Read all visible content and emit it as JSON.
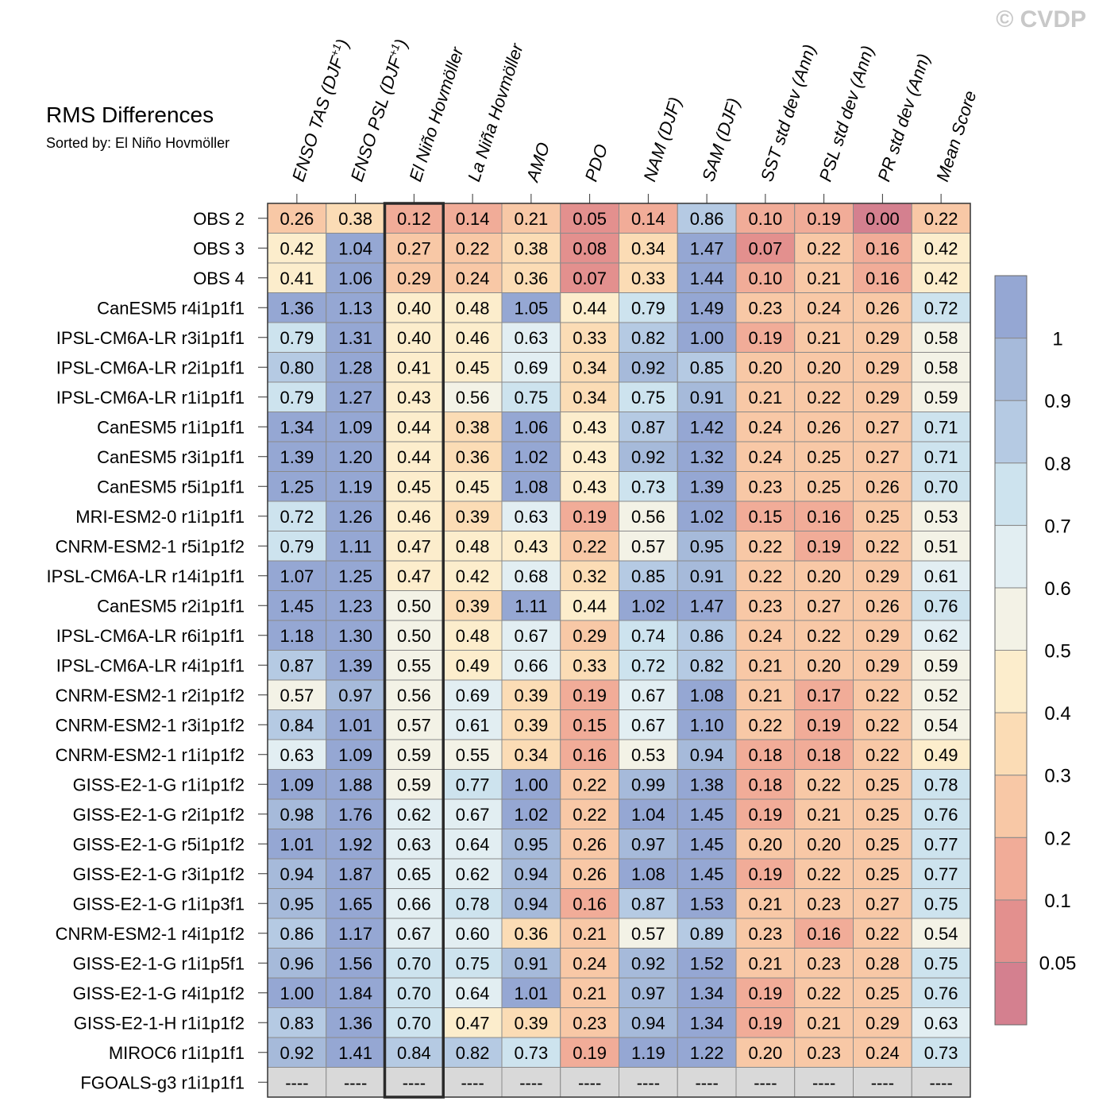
{
  "watermark": "© CVDP",
  "chart_data": {
    "type": "heatmap",
    "title": "RMS Differences",
    "subtitle": "Sorted by: El Niño Hovmöller",
    "highlight_column": "El Niño Hovmöller",
    "missing_label": "----",
    "columns": [
      "ENSO TAS (DJF+1)",
      "ENSO PSL (DJF+1)",
      "El Niño Hovmöller",
      "La Niña Hovmöller",
      "AMO",
      "PDO",
      "NAM (DJF)",
      "SAM (DJF)",
      "SST std dev (Ann)",
      "PSL std dev (Ann)",
      "PR std dev (Ann)",
      "Mean Score"
    ],
    "rows": [
      {
        "name": "OBS 2",
        "values": [
          0.26,
          0.38,
          0.12,
          0.14,
          0.21,
          0.05,
          0.14,
          0.86,
          0.1,
          0.19,
          0.0,
          0.22
        ]
      },
      {
        "name": "OBS 3",
        "values": [
          0.42,
          1.04,
          0.27,
          0.22,
          0.38,
          0.08,
          0.34,
          1.47,
          0.07,
          0.22,
          0.16,
          0.42
        ]
      },
      {
        "name": "OBS 4",
        "values": [
          0.41,
          1.06,
          0.29,
          0.24,
          0.36,
          0.07,
          0.33,
          1.44,
          0.1,
          0.21,
          0.16,
          0.42
        ]
      },
      {
        "name": "CanESM5 r4i1p1f1",
        "values": [
          1.36,
          1.13,
          0.4,
          0.48,
          1.05,
          0.44,
          0.79,
          1.49,
          0.23,
          0.24,
          0.26,
          0.72
        ]
      },
      {
        "name": "IPSL-CM6A-LR r3i1p1f1",
        "values": [
          0.79,
          1.31,
          0.4,
          0.46,
          0.63,
          0.33,
          0.82,
          1.0,
          0.19,
          0.21,
          0.29,
          0.58
        ]
      },
      {
        "name": "IPSL-CM6A-LR r2i1p1f1",
        "values": [
          0.8,
          1.28,
          0.41,
          0.45,
          0.69,
          0.34,
          0.92,
          0.85,
          0.2,
          0.2,
          0.29,
          0.58
        ]
      },
      {
        "name": "IPSL-CM6A-LR r1i1p1f1",
        "values": [
          0.79,
          1.27,
          0.43,
          0.56,
          0.75,
          0.34,
          0.75,
          0.91,
          0.21,
          0.22,
          0.29,
          0.59
        ]
      },
      {
        "name": "CanESM5 r1i1p1f1",
        "values": [
          1.34,
          1.09,
          0.44,
          0.38,
          1.06,
          0.43,
          0.87,
          1.42,
          0.24,
          0.26,
          0.27,
          0.71
        ]
      },
      {
        "name": "CanESM5 r3i1p1f1",
        "values": [
          1.39,
          1.2,
          0.44,
          0.36,
          1.02,
          0.43,
          0.92,
          1.32,
          0.24,
          0.25,
          0.27,
          0.71
        ]
      },
      {
        "name": "CanESM5 r5i1p1f1",
        "values": [
          1.25,
          1.19,
          0.45,
          0.45,
          1.08,
          0.43,
          0.73,
          1.39,
          0.23,
          0.25,
          0.26,
          0.7
        ]
      },
      {
        "name": "MRI-ESM2-0 r1i1p1f1",
        "values": [
          0.72,
          1.26,
          0.46,
          0.39,
          0.63,
          0.19,
          0.56,
          1.02,
          0.15,
          0.16,
          0.25,
          0.53
        ]
      },
      {
        "name": "CNRM-ESM2-1 r5i1p1f2",
        "values": [
          0.79,
          1.11,
          0.47,
          0.48,
          0.43,
          0.22,
          0.57,
          0.95,
          0.22,
          0.19,
          0.22,
          0.51
        ]
      },
      {
        "name": "IPSL-CM6A-LR r14i1p1f1",
        "values": [
          1.07,
          1.25,
          0.47,
          0.42,
          0.68,
          0.32,
          0.85,
          0.91,
          0.22,
          0.2,
          0.29,
          0.61
        ]
      },
      {
        "name": "CanESM5 r2i1p1f1",
        "values": [
          1.45,
          1.23,
          0.5,
          0.39,
          1.11,
          0.44,
          1.02,
          1.47,
          0.23,
          0.27,
          0.26,
          0.76
        ]
      },
      {
        "name": "IPSL-CM6A-LR r6i1p1f1",
        "values": [
          1.18,
          1.3,
          0.5,
          0.48,
          0.67,
          0.29,
          0.74,
          0.86,
          0.24,
          0.22,
          0.29,
          0.62
        ]
      },
      {
        "name": "IPSL-CM6A-LR r4i1p1f1",
        "values": [
          0.87,
          1.39,
          0.55,
          0.49,
          0.66,
          0.33,
          0.72,
          0.82,
          0.21,
          0.2,
          0.29,
          0.59
        ]
      },
      {
        "name": "CNRM-ESM2-1 r2i1p1f2",
        "values": [
          0.57,
          0.97,
          0.56,
          0.69,
          0.39,
          0.19,
          0.67,
          1.08,
          0.21,
          0.17,
          0.22,
          0.52
        ]
      },
      {
        "name": "CNRM-ESM2-1 r3i1p1f2",
        "values": [
          0.84,
          1.01,
          0.57,
          0.61,
          0.39,
          0.15,
          0.67,
          1.1,
          0.22,
          0.19,
          0.22,
          0.54
        ]
      },
      {
        "name": "CNRM-ESM2-1 r1i1p1f2",
        "values": [
          0.63,
          1.09,
          0.59,
          0.55,
          0.34,
          0.16,
          0.53,
          0.94,
          0.18,
          0.18,
          0.22,
          0.49
        ]
      },
      {
        "name": "GISS-E2-1-G r1i1p1f2",
        "values": [
          1.09,
          1.88,
          0.59,
          0.77,
          1.0,
          0.22,
          0.99,
          1.38,
          0.18,
          0.22,
          0.25,
          0.78
        ]
      },
      {
        "name": "GISS-E2-1-G r2i1p1f2",
        "values": [
          0.98,
          1.76,
          0.62,
          0.67,
          1.02,
          0.22,
          1.04,
          1.45,
          0.19,
          0.21,
          0.25,
          0.76
        ]
      },
      {
        "name": "GISS-E2-1-G r5i1p1f2",
        "values": [
          1.01,
          1.92,
          0.63,
          0.64,
          0.95,
          0.26,
          0.97,
          1.45,
          0.2,
          0.2,
          0.25,
          0.77
        ]
      },
      {
        "name": "GISS-E2-1-G r3i1p1f2",
        "values": [
          0.94,
          1.87,
          0.65,
          0.62,
          0.94,
          0.26,
          1.08,
          1.45,
          0.19,
          0.22,
          0.25,
          0.77
        ]
      },
      {
        "name": "GISS-E2-1-G r1i1p3f1",
        "values": [
          0.95,
          1.65,
          0.66,
          0.78,
          0.94,
          0.16,
          0.87,
          1.53,
          0.21,
          0.23,
          0.27,
          0.75
        ]
      },
      {
        "name": "CNRM-ESM2-1 r4i1p1f2",
        "values": [
          0.86,
          1.17,
          0.67,
          0.6,
          0.36,
          0.21,
          0.57,
          0.89,
          0.23,
          0.16,
          0.22,
          0.54
        ]
      },
      {
        "name": "GISS-E2-1-G r1i1p5f1",
        "values": [
          0.96,
          1.56,
          0.7,
          0.75,
          0.91,
          0.24,
          0.92,
          1.52,
          0.21,
          0.23,
          0.28,
          0.75
        ]
      },
      {
        "name": "GISS-E2-1-G r4i1p1f2",
        "values": [
          1.0,
          1.84,
          0.7,
          0.64,
          1.01,
          0.21,
          0.97,
          1.34,
          0.19,
          0.22,
          0.25,
          0.76
        ]
      },
      {
        "name": "GISS-E2-1-H r1i1p1f2",
        "values": [
          0.83,
          1.36,
          0.7,
          0.47,
          0.39,
          0.23,
          0.94,
          1.34,
          0.19,
          0.21,
          0.29,
          0.63
        ]
      },
      {
        "name": "MIROC6 r1i1p1f1",
        "values": [
          0.92,
          1.41,
          0.84,
          0.82,
          0.73,
          0.19,
          1.19,
          1.22,
          0.2,
          0.23,
          0.24,
          0.73
        ]
      },
      {
        "name": "FGOALS-g3 r1i1p1f1",
        "values": [
          null,
          null,
          null,
          null,
          null,
          null,
          null,
          null,
          null,
          null,
          null,
          null
        ]
      }
    ],
    "colorbar": {
      "bounds": [
        0.05,
        0.1,
        0.2,
        0.3,
        0.4,
        0.5,
        0.6,
        0.7,
        0.8,
        0.9,
        1
      ],
      "tick_labels": [
        "0.05",
        "0.1",
        "0.2",
        "0.3",
        "0.4",
        "0.5",
        "0.6",
        "0.7",
        "0.8",
        "0.9",
        "1"
      ],
      "colors": [
        "#d4808f",
        "#e3908e",
        "#f1ac98",
        "#f8c8a6",
        "#fbdcb5",
        "#fcedcc",
        "#f3f2e6",
        "#e2eef2",
        "#cde3ee",
        "#b5cae3",
        "#a6bada",
        "#95a7d3"
      ],
      "missing_color": "#d9d9d9"
    }
  }
}
